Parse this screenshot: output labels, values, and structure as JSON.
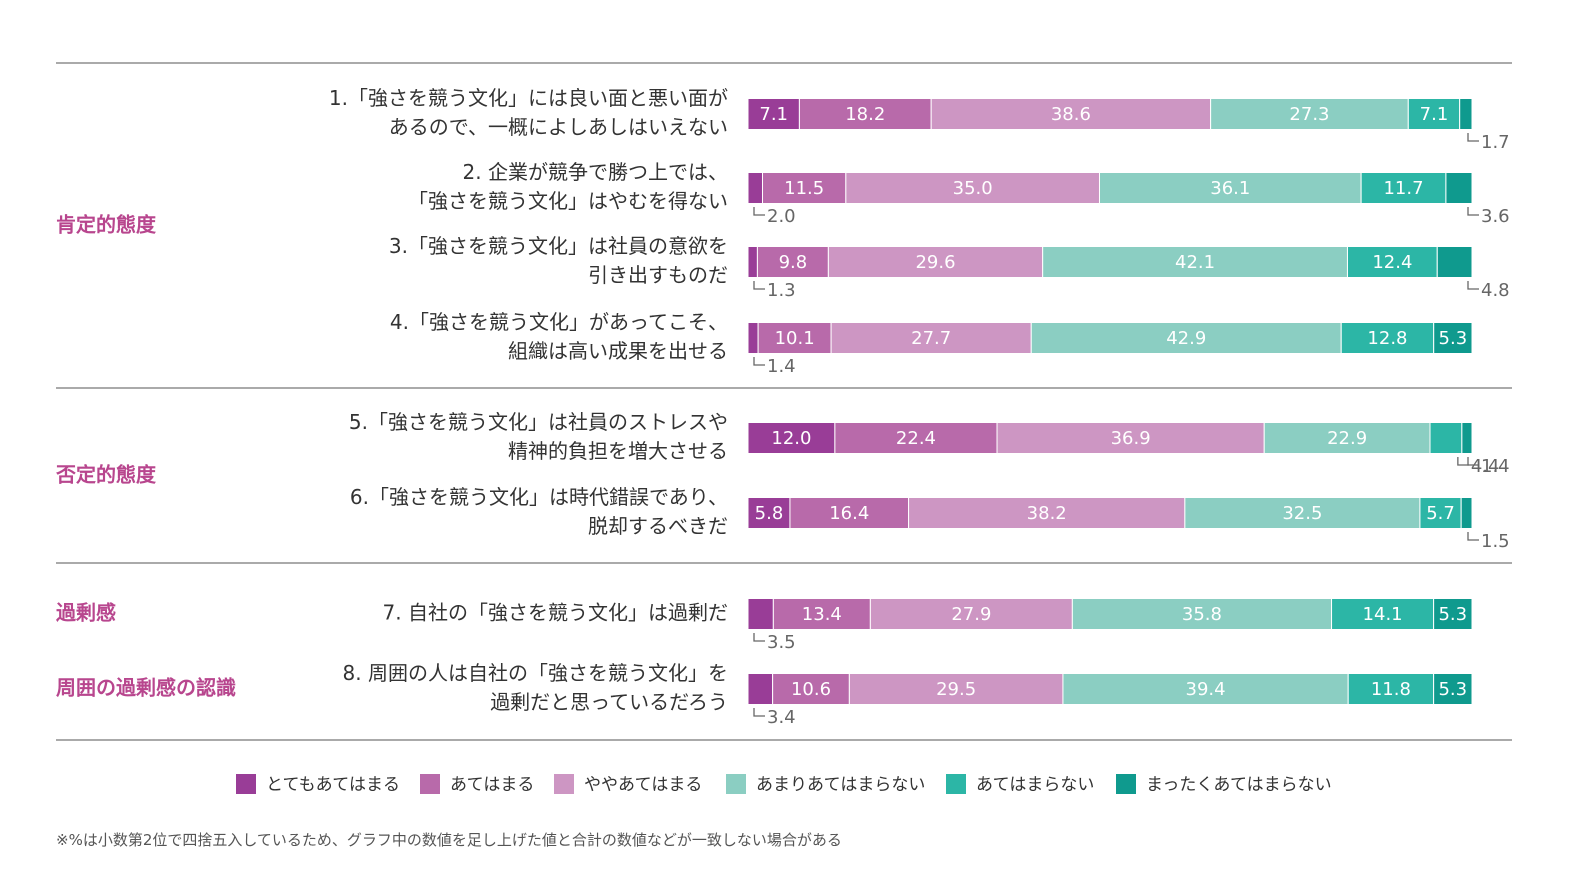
{
  "chart_data": {
    "type": "bar",
    "orientation": "horizontal",
    "stacked": true,
    "unit": "%",
    "legend_position": "bottom",
    "series_names": [
      "とてもあてはまる",
      "あてはまる",
      "ややあてはまる",
      "あまりあてはまらない",
      "あてはまらない",
      "まったくあてはまらない"
    ],
    "series_colors": [
      "#993d97",
      "#b86aaa",
      "#cd96c3",
      "#8bcec2",
      "#2cb6a6",
      "#0f9a8e"
    ],
    "groups": [
      {
        "label": "肯定的態度",
        "color": "#b8468e",
        "rows": [
          0,
          1,
          2,
          3
        ]
      },
      {
        "label": "否定的態度",
        "color": "#b8468e",
        "rows": [
          4,
          5
        ]
      },
      {
        "label": "過剰感",
        "color": "#b8468e",
        "rows": [
          6
        ]
      },
      {
        "label": "周囲の過剰感の認識",
        "color": "#b8468e",
        "rows": [
          7
        ]
      }
    ],
    "rows": [
      {
        "label": [
          "1.「強さを競う文化」には良い面と悪い面が",
          "あるので、一概によしあしはいえない"
        ],
        "values": [
          7.1,
          18.2,
          38.6,
          27.3,
          7.1,
          1.7
        ]
      },
      {
        "label": [
          "2. 企業が競争で勝つ上では、",
          "「強さを競う文化」はやむを得ない"
        ],
        "values": [
          2.0,
          11.5,
          35.0,
          36.1,
          11.7,
          3.6
        ]
      },
      {
        "label": [
          "3.「強さを競う文化」は社員の意欲を",
          "引き出すものだ"
        ],
        "values": [
          1.3,
          9.8,
          29.6,
          42.1,
          12.4,
          4.8
        ]
      },
      {
        "label": [
          "4.「強さを競う文化」があってこそ、",
          "組織は高い成果を出せる"
        ],
        "values": [
          1.4,
          10.1,
          27.7,
          42.9,
          12.8,
          5.3
        ]
      },
      {
        "label": [
          "5.「強さを競う文化」は社員のストレスや",
          "精神的負担を増大させる"
        ],
        "values": [
          12.0,
          22.4,
          36.9,
          22.9,
          4.4,
          1.4
        ]
      },
      {
        "label": [
          "6.「強さを競う文化」は時代錯誤であり、",
          "脱却するべきだ"
        ],
        "values": [
          5.8,
          16.4,
          38.2,
          32.5,
          5.7,
          1.5
        ]
      },
      {
        "label": [
          "7. 自社の「強さを競う文化」は過剰だ"
        ],
        "values": [
          3.5,
          13.4,
          27.9,
          35.8,
          14.1,
          5.3
        ]
      },
      {
        "label": [
          "8. 周囲の人は自社の「強さを競う文化」を",
          "過剰だと思っているだろう"
        ],
        "values": [
          3.4,
          10.6,
          29.5,
          39.4,
          11.8,
          5.3
        ]
      }
    ]
  },
  "footnote": "※%は小数第2位で四捨五入しているため、グラフ中の数値を足し上げた値と合計の数値などが一致しない場合がある"
}
